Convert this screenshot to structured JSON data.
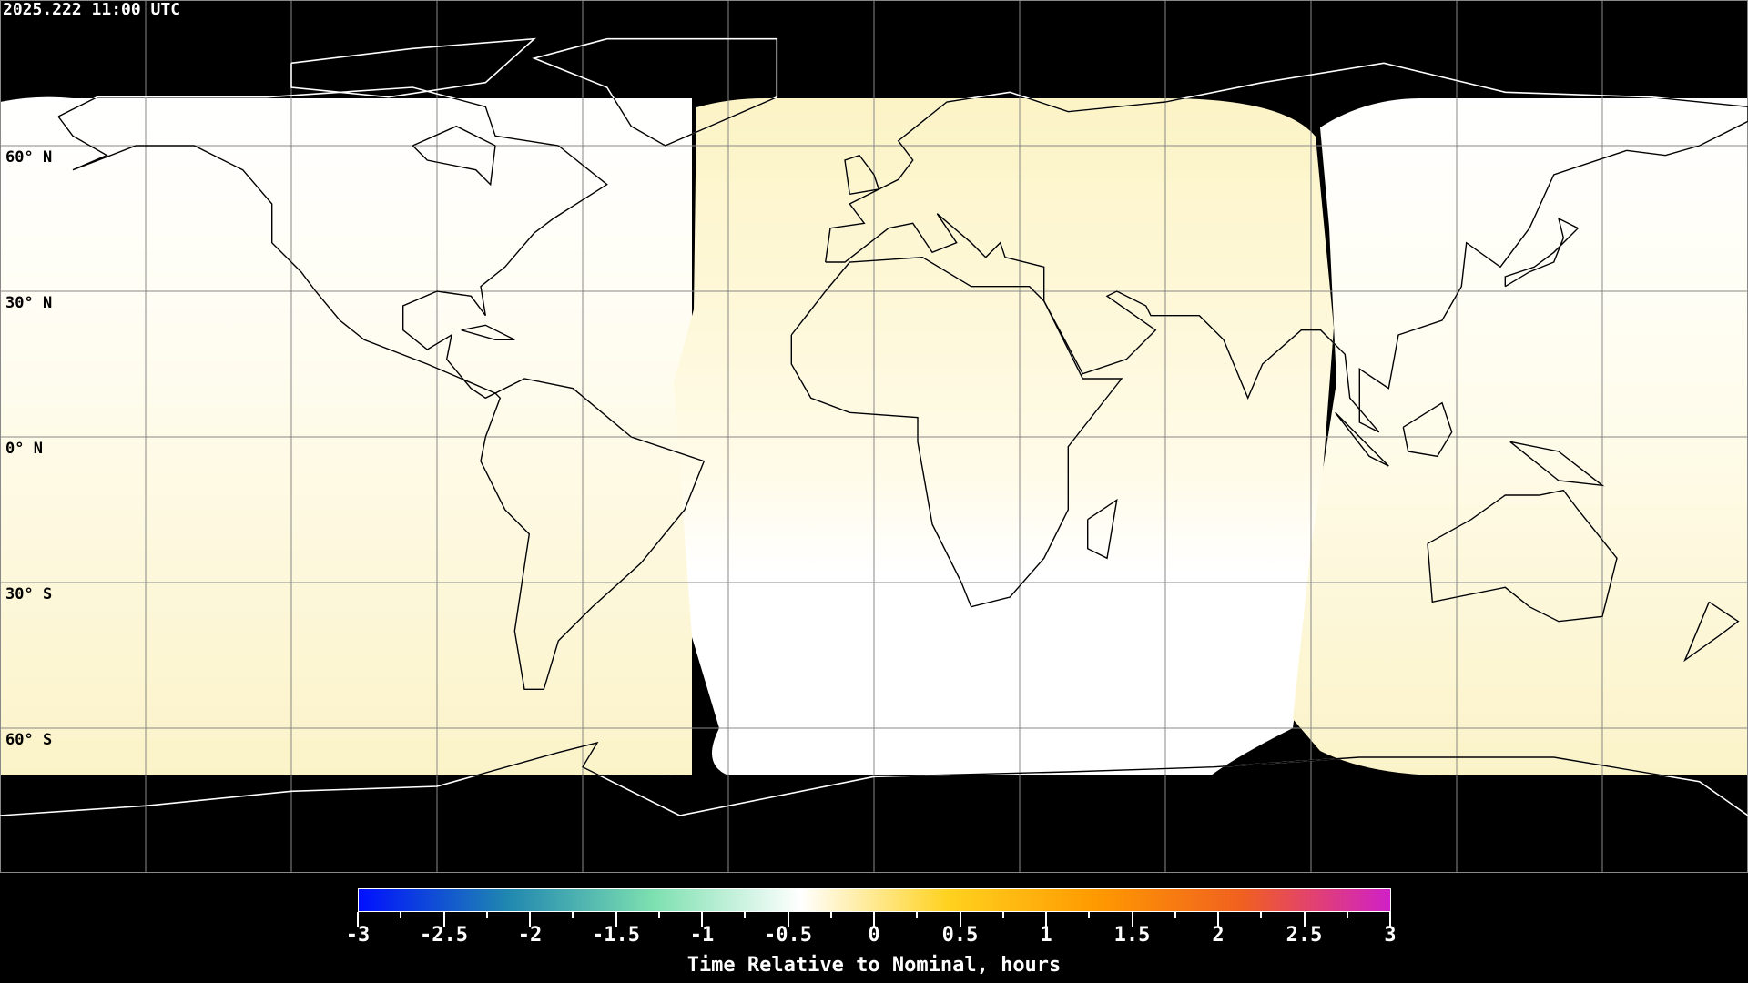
{
  "timestamp": "2025.222 11:00 UTC",
  "lat_labels": [
    "60° N",
    "30° N",
    "0° N",
    "30° S",
    "60° S"
  ],
  "colorbar": {
    "title": "Time Relative to Nominal, hours",
    "ticks": [
      "-3",
      "-2.5",
      "-2",
      "-1.5",
      "-1",
      "-0.5",
      "0",
      "0.5",
      "1",
      "1.5",
      "2",
      "2.5",
      "3"
    ],
    "range": [
      -3,
      3
    ],
    "colors": [
      "#0010ff",
      "#1f86b0",
      "#7de0b0",
      "#ffffff",
      "#ffd21f",
      "#ff9a00",
      "#f06020",
      "#d020c8"
    ]
  },
  "map": {
    "projection": "equirectangular",
    "grid_spacing_deg": 30,
    "background": "#000000",
    "region_colors": {
      "near_nominal": "#ffffff",
      "slightly_late": "#fdf8d0"
    }
  }
}
